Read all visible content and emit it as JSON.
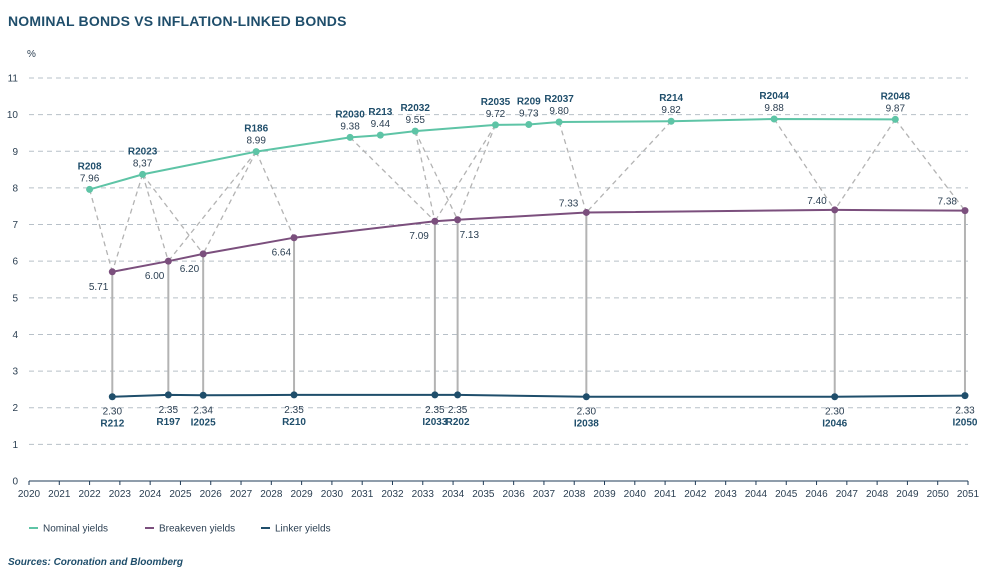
{
  "title": "NOMINAL BONDS VS INFLATION-LINKED BONDS",
  "source": "Sources: Coronation and Bloomberg",
  "chart_data": {
    "type": "line",
    "ylabel": "%",
    "ylim": [
      0,
      11
    ],
    "yticks": [
      0,
      1,
      2,
      3,
      4,
      5,
      6,
      7,
      8,
      9,
      10,
      11
    ],
    "xlim": [
      2020,
      2051
    ],
    "xticks": [
      2020,
      2021,
      2022,
      2023,
      2024,
      2025,
      2026,
      2027,
      2028,
      2029,
      2030,
      2031,
      2032,
      2033,
      2034,
      2035,
      2036,
      2037,
      2038,
      2039,
      2040,
      2041,
      2042,
      2043,
      2044,
      2045,
      2046,
      2047,
      2048,
      2049,
      2050,
      2051
    ],
    "grid": "horizontal",
    "legend_position": "bottom-left",
    "series": [
      {
        "name": "Nominal yields",
        "color": "#5ec4a6",
        "points": [
          {
            "x": 2022,
            "y": 7.96,
            "value_label": "7.96",
            "bond": "R208"
          },
          {
            "x": 2023.75,
            "y": 8.37,
            "value_label": "8,37",
            "bond": "R2023"
          },
          {
            "x": 2027.5,
            "y": 8.99,
            "value_label": "8.99",
            "bond": "R186"
          },
          {
            "x": 2030.6,
            "y": 9.38,
            "value_label": "9.38",
            "bond": "R2030"
          },
          {
            "x": 2031.6,
            "y": 9.44,
            "value_label": "9.44",
            "bond": "R213"
          },
          {
            "x": 2032.75,
            "y": 9.55,
            "value_label": "9.55",
            "bond": "R2032"
          },
          {
            "x": 2035.4,
            "y": 9.72,
            "value_label": "9.72",
            "bond": "R2035"
          },
          {
            "x": 2036.5,
            "y": 9.73,
            "value_label": "9.73",
            "bond": "R209"
          },
          {
            "x": 2037.5,
            "y": 9.8,
            "value_label": "9.80",
            "bond": "R2037"
          },
          {
            "x": 2041.2,
            "y": 9.82,
            "value_label": "9.82",
            "bond": "R214"
          },
          {
            "x": 2044.6,
            "y": 9.88,
            "value_label": "9.88",
            "bond": "R2044"
          },
          {
            "x": 2048.6,
            "y": 9.87,
            "value_label": "9.87",
            "bond": "R2048"
          }
        ]
      },
      {
        "name": "Breakeven yields",
        "color": "#7b4f7d",
        "points": [
          {
            "x": 2022.75,
            "y": 5.71,
            "value_label": "5.71"
          },
          {
            "x": 2024.6,
            "y": 6.0,
            "value_label": "6.00"
          },
          {
            "x": 2025.75,
            "y": 6.2,
            "value_label": "6.20"
          },
          {
            "x": 2028.75,
            "y": 6.64,
            "value_label": "6.64"
          },
          {
            "x": 2033.4,
            "y": 7.09,
            "value_label": "7.09"
          },
          {
            "x": 2034.15,
            "y": 7.13,
            "value_label": "7.13"
          },
          {
            "x": 2038.4,
            "y": 7.33,
            "value_label": "7.33"
          },
          {
            "x": 2046.6,
            "y": 7.4,
            "value_label": "7.40"
          },
          {
            "x": 2050.9,
            "y": 7.38,
            "value_label": "7.38"
          }
        ]
      },
      {
        "name": "Linker yields",
        "color": "#1f4e6b",
        "points": [
          {
            "x": 2022.75,
            "y": 2.3,
            "value_label": "2.30",
            "bond": "R212"
          },
          {
            "x": 2024.6,
            "y": 2.35,
            "value_label": "2.35",
            "bond": "R197"
          },
          {
            "x": 2025.75,
            "y": 2.34,
            "value_label": "2.34",
            "bond": "I2025"
          },
          {
            "x": 2028.75,
            "y": 2.35,
            "value_label": "2.35",
            "bond": "R210"
          },
          {
            "x": 2033.4,
            "y": 2.35,
            "value_label": "2.35",
            "bond": "I2033"
          },
          {
            "x": 2034.15,
            "y": 2.35,
            "value_label": "2.35",
            "bond": "R202"
          },
          {
            "x": 2038.4,
            "y": 2.3,
            "value_label": "2.30",
            "bond": "I2038"
          },
          {
            "x": 2046.6,
            "y": 2.3,
            "value_label": "2.30",
            "bond": "I2046"
          },
          {
            "x": 2050.9,
            "y": 2.33,
            "value_label": "2.33",
            "bond": "I2050"
          }
        ]
      }
    ],
    "dashed_connectors": [
      [
        0,
        0
      ],
      [
        1,
        0
      ],
      [
        1,
        1
      ],
      [
        1,
        2
      ],
      [
        2,
        1
      ],
      [
        2,
        2
      ],
      [
        2,
        3
      ],
      [
        3,
        4
      ],
      [
        5,
        4
      ],
      [
        5,
        5
      ],
      [
        6,
        4
      ],
      [
        6,
        5
      ],
      [
        8,
        6
      ],
      [
        9,
        6
      ],
      [
        10,
        7
      ],
      [
        11,
        7
      ],
      [
        11,
        8
      ]
    ]
  }
}
